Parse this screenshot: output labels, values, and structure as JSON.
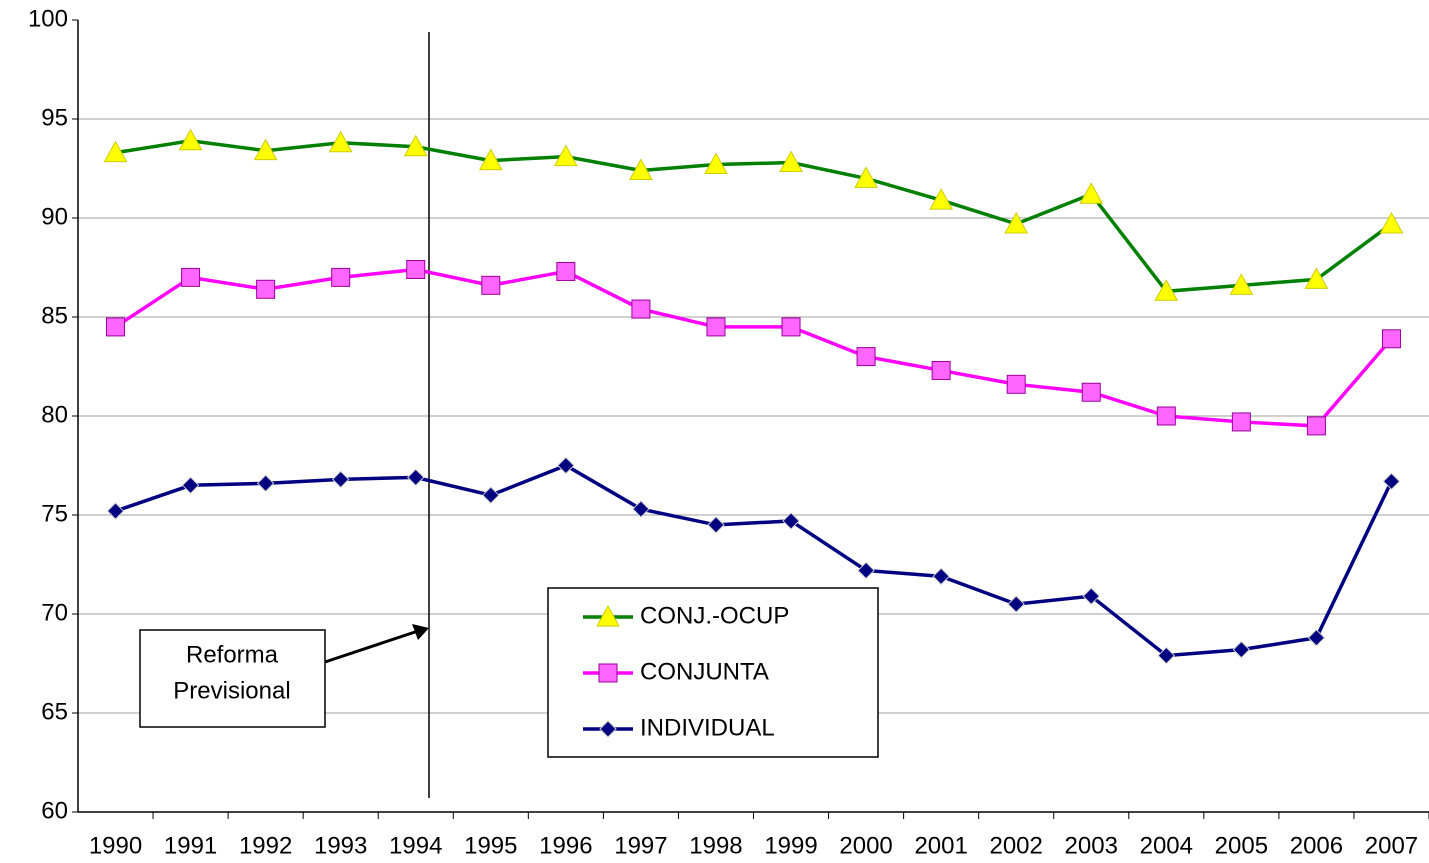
{
  "chart_data": {
    "type": "line",
    "categories": [
      "1990",
      "1991",
      "1992",
      "1993",
      "1994",
      "1995",
      "1996",
      "1997",
      "1998",
      "1999",
      "2000",
      "2001",
      "2002",
      "2003",
      "2004",
      "2005",
      "2006",
      "2007"
    ],
    "series": [
      {
        "name": "CONJ.-OCUP",
        "color": "#008000",
        "marker": "triangle",
        "marker_color": "#ffff00",
        "values": [
          93.3,
          93.9,
          93.4,
          93.8,
          93.6,
          92.9,
          93.1,
          92.4,
          92.7,
          92.8,
          92.0,
          90.9,
          89.7,
          91.2,
          86.3,
          86.6,
          86.9,
          89.7
        ]
      },
      {
        "name": "CONJUNTA",
        "color": "#ff00ff",
        "marker": "square",
        "marker_color": "#ff66ff",
        "values": [
          84.5,
          87.0,
          86.4,
          87.0,
          87.4,
          86.6,
          87.3,
          85.4,
          84.5,
          84.5,
          83.0,
          82.3,
          81.6,
          81.2,
          80.0,
          79.7,
          79.5,
          83.9
        ]
      },
      {
        "name": "INDIVIDUAL",
        "color": "#000080",
        "marker": "diamond",
        "marker_color": "#000080",
        "values": [
          75.2,
          76.5,
          76.6,
          76.8,
          76.9,
          76.0,
          77.5,
          75.3,
          74.5,
          74.7,
          72.2,
          71.9,
          70.5,
          70.9,
          67.9,
          68.2,
          68.8,
          76.7
        ]
      }
    ],
    "ylim": [
      60,
      100
    ],
    "yticks": [
      60,
      65,
      70,
      75,
      80,
      85,
      90,
      95,
      100
    ],
    "grid": true,
    "annotation": [
      "Reforma",
      "Previsional"
    ]
  }
}
